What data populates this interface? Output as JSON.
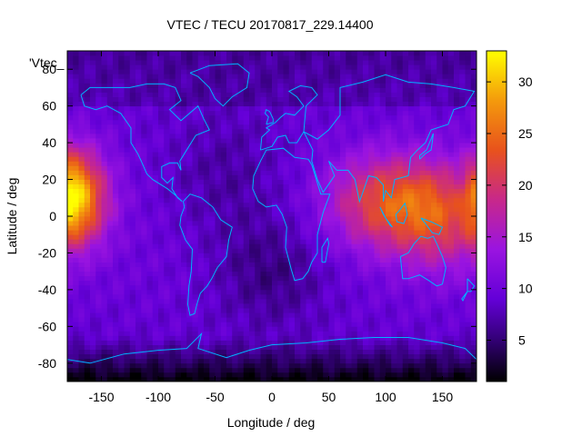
{
  "chart_data": {
    "type": "heatmap",
    "title": "VTEC / TECU 20170817_229.14400",
    "xlabel": "Longitude / deg",
    "ylabel": "Latitude / deg",
    "key_label": "'Vtec_",
    "xlim": [
      -180,
      180
    ],
    "ylim": [
      -90,
      90
    ],
    "x_ticks": [
      -150,
      -100,
      -50,
      0,
      50,
      100,
      150
    ],
    "y_ticks": [
      -80,
      -60,
      -40,
      -20,
      0,
      20,
      40,
      60,
      80
    ],
    "x_tick_labels": [
      "-150",
      "-100",
      "-50",
      "0",
      "50",
      "100",
      "150"
    ],
    "y_tick_labels": [
      "-80",
      "-60",
      "-40",
      "-20",
      "0",
      "20",
      "40",
      "60",
      "80"
    ],
    "colorbar": {
      "range": [
        1,
        33
      ],
      "ticks": [
        5,
        10,
        15,
        20,
        25,
        30
      ],
      "tick_labels": [
        "5",
        "10",
        "15",
        "20",
        "25",
        "30"
      ]
    },
    "grid_resolution": {
      "lon_step": 5,
      "lat_step": 2.5
    },
    "vtec_features": [
      {
        "name": "equatorial-maximum-asia-pacific",
        "lon": 100,
        "lat": 5,
        "peak": 22
      },
      {
        "name": "equatorial-maximum-dateline",
        "lon": -180,
        "lat": 10,
        "peak": 33
      },
      {
        "name": "southern-high-lat-minimum",
        "lon": 20,
        "lat": -85,
        "min": 1
      }
    ],
    "grid": false,
    "overlay": "coastlines"
  }
}
